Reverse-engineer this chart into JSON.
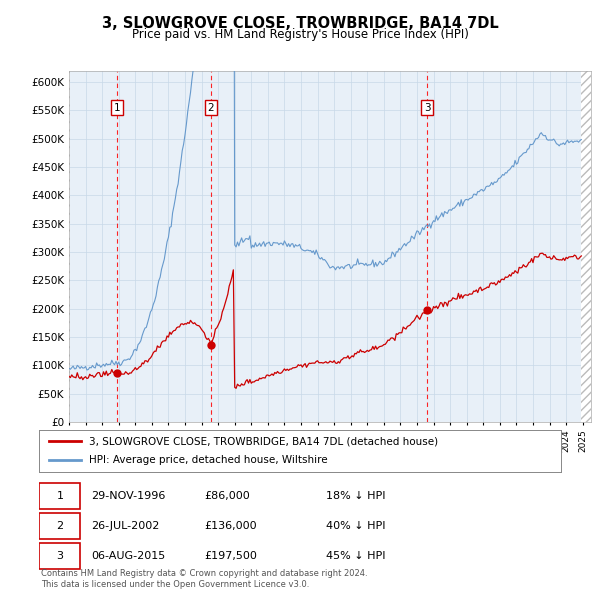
{
  "title": "3, SLOWGROVE CLOSE, TROWBRIDGE, BA14 7DL",
  "subtitle": "Price paid vs. HM Land Registry's House Price Index (HPI)",
  "ylim": [
    0,
    620000
  ],
  "yticks": [
    0,
    50000,
    100000,
    150000,
    200000,
    250000,
    300000,
    350000,
    400000,
    450000,
    500000,
    550000,
    600000
  ],
  "ytick_labels": [
    "£0",
    "£50K",
    "£100K",
    "£150K",
    "£200K",
    "£250K",
    "£300K",
    "£350K",
    "£400K",
    "£450K",
    "£500K",
    "£550K",
    "£600K"
  ],
  "hpi_color": "#6699cc",
  "price_color": "#cc0000",
  "plot_bg": "#e8f0f8",
  "grid_color": "#c8d8e8",
  "legend_label_price": "3, SLOWGROVE CLOSE, TROWBRIDGE, BA14 7DL (detached house)",
  "legend_label_hpi": "HPI: Average price, detached house, Wiltshire",
  "sale_year_floats": [
    1996.913,
    2002.563,
    2015.604
  ],
  "sale_prices": [
    86000,
    136000,
    197500
  ],
  "sale_labels": [
    "1",
    "2",
    "3"
  ],
  "table_rows": [
    [
      "1",
      "29-NOV-1996",
      "£86,000",
      "18% ↓ HPI"
    ],
    [
      "2",
      "26-JUL-2002",
      "£136,000",
      "40% ↓ HPI"
    ],
    [
      "3",
      "06-AUG-2015",
      "£197,500",
      "45% ↓ HPI"
    ]
  ],
  "footer": "Contains HM Land Registry data © Crown copyright and database right 2024.\nThis data is licensed under the Open Government Licence v3.0.",
  "xmin": 1994.0,
  "xmax": 2025.5
}
